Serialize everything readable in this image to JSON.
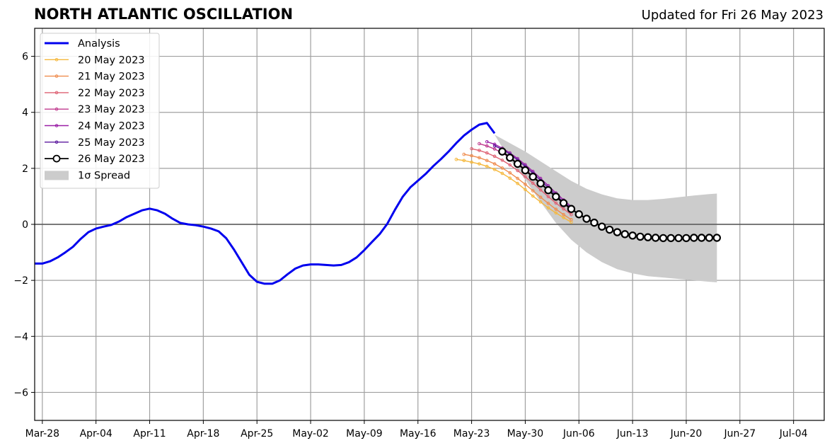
{
  "header": {
    "title": "NORTH ATLANTIC OSCILLATION",
    "subtitle": "Updated for Fri 26 May 2023"
  },
  "chart_data": {
    "type": "line",
    "title": "NORTH ATLANTIC OSCILLATION",
    "subtitle": "Updated for Fri 26 May 2023",
    "xlabel": "",
    "ylabel": "",
    "x_axis": {
      "type": "date",
      "range": [
        "2023-03-27",
        "2023-07-08"
      ],
      "ticks": [
        "2023-03-28",
        "2023-04-04",
        "2023-04-11",
        "2023-04-18",
        "2023-04-25",
        "2023-05-02",
        "2023-05-09",
        "2023-05-16",
        "2023-05-23",
        "2023-05-30",
        "2023-06-06",
        "2023-06-13",
        "2023-06-20",
        "2023-06-27",
        "2023-07-04"
      ],
      "tick_labels": [
        "Mar-28",
        "Apr-04",
        "Apr-11",
        "Apr-18",
        "Apr-25",
        "May-02",
        "May-09",
        "May-16",
        "May-23",
        "May-30",
        "Jun-06",
        "Jun-13",
        "Jun-20",
        "Jun-27",
        "Jul-04"
      ]
    },
    "y_axis": {
      "range": [
        -7,
        7
      ],
      "ticks": [
        -6,
        -4,
        -2,
        0,
        2,
        4,
        6
      ],
      "tick_labels": [
        "−6",
        "−4",
        "−2",
        "0",
        "2",
        "4",
        "6"
      ]
    },
    "grid": true,
    "zero_line": true,
    "legend": {
      "placement": "top-left"
    },
    "analysis": {
      "name": "Analysis",
      "color": "#0000ee",
      "dates": [
        "2023-03-27",
        "2023-03-28",
        "2023-03-29",
        "2023-03-30",
        "2023-03-31",
        "2023-04-01",
        "2023-04-02",
        "2023-04-03",
        "2023-04-04",
        "2023-04-05",
        "2023-04-06",
        "2023-04-07",
        "2023-04-08",
        "2023-04-09",
        "2023-04-10",
        "2023-04-11",
        "2023-04-12",
        "2023-04-13",
        "2023-04-14",
        "2023-04-15",
        "2023-04-16",
        "2023-04-17",
        "2023-04-18",
        "2023-04-19",
        "2023-04-20",
        "2023-04-21",
        "2023-04-22",
        "2023-04-23",
        "2023-04-24",
        "2023-04-25",
        "2023-04-26",
        "2023-04-27",
        "2023-04-28",
        "2023-04-29",
        "2023-04-30",
        "2023-05-01",
        "2023-05-02",
        "2023-05-03",
        "2023-05-04",
        "2023-05-05",
        "2023-05-06",
        "2023-05-07",
        "2023-05-08",
        "2023-05-09",
        "2023-05-10",
        "2023-05-11",
        "2023-05-12",
        "2023-05-13",
        "2023-05-14",
        "2023-05-15",
        "2023-05-16",
        "2023-05-17",
        "2023-05-18",
        "2023-05-19",
        "2023-05-20",
        "2023-05-21",
        "2023-05-22",
        "2023-05-23",
        "2023-05-24",
        "2023-05-25",
        "2023-05-26"
      ],
      "values": [
        -1.4,
        -1.4,
        -1.32,
        -1.18,
        -1.0,
        -0.8,
        -0.52,
        -0.28,
        -0.15,
        -0.08,
        -0.02,
        0.1,
        0.26,
        0.38,
        0.5,
        0.56,
        0.5,
        0.38,
        0.2,
        0.05,
        0.0,
        -0.03,
        -0.08,
        -0.15,
        -0.25,
        -0.5,
        -0.9,
        -1.35,
        -1.8,
        -2.05,
        -2.12,
        -2.12,
        -2.0,
        -1.78,
        -1.58,
        -1.47,
        -1.43,
        -1.43,
        -1.45,
        -1.47,
        -1.45,
        -1.35,
        -1.18,
        -0.92,
        -0.63,
        -0.35,
        0.02,
        0.52,
        0.98,
        1.32,
        1.56,
        1.8,
        2.08,
        2.33,
        2.6,
        2.9,
        3.17,
        3.38,
        3.56,
        3.62,
        3.25
      ]
    },
    "forecasts": [
      {
        "name": "20 May 2023",
        "color": "#f5b83d",
        "start": "2023-05-21",
        "values": [
          2.32,
          2.28,
          2.22,
          2.16,
          2.07,
          1.96,
          1.82,
          1.65,
          1.46,
          1.24,
          1.01,
          0.8,
          0.59,
          0.41,
          0.24,
          0.08
        ]
      },
      {
        "name": "21 May 2023",
        "color": "#ef8c4e",
        "start": "2023-05-22",
        "values": [
          2.5,
          2.45,
          2.38,
          2.28,
          2.16,
          2.01,
          1.84,
          1.64,
          1.43,
          1.2,
          0.97,
          0.75,
          0.54,
          0.35,
          0.17
        ]
      },
      {
        "name": "22 May 2023",
        "color": "#de6072",
        "start": "2023-05-23",
        "values": [
          2.7,
          2.64,
          2.55,
          2.43,
          2.29,
          2.12,
          1.92,
          1.7,
          1.47,
          1.23,
          0.99,
          0.76,
          0.55,
          0.35
        ]
      },
      {
        "name": "23 May 2023",
        "color": "#c03a8e",
        "start": "2023-05-24",
        "values": [
          2.88,
          2.8,
          2.69,
          2.55,
          2.38,
          2.18,
          1.96,
          1.72,
          1.47,
          1.22,
          0.97,
          0.74,
          0.52
        ]
      },
      {
        "name": "24 May 2023",
        "color": "#9a1fa6",
        "start": "2023-05-25",
        "values": [
          2.95,
          2.86,
          2.72,
          2.55,
          2.35,
          2.13,
          1.89,
          1.64,
          1.38,
          1.12,
          0.87,
          0.63
        ]
      },
      {
        "name": "25 May 2023",
        "color": "#5c1a9e",
        "start": "2023-05-26",
        "values": [
          2.8,
          2.68,
          2.51,
          2.3,
          2.07,
          1.83,
          1.57,
          1.31,
          1.05,
          0.8,
          0.58
        ]
      }
    ],
    "latest_forecast": {
      "name": "26 May 2023",
      "color": "#000000",
      "start": "2023-05-27",
      "values": [
        2.6,
        2.38,
        2.16,
        1.93,
        1.7,
        1.46,
        1.22,
        0.99,
        0.76,
        0.55,
        0.36,
        0.2,
        0.06,
        -0.08,
        -0.19,
        -0.28,
        -0.35,
        -0.4,
        -0.44,
        -0.46,
        -0.48,
        -0.49,
        -0.49,
        -0.49,
        -0.49,
        -0.48,
        -0.48,
        -0.48,
        -0.48
      ]
    },
    "spread": {
      "name": "1σ Spread",
      "color": "#cccccc",
      "dates": [
        "2023-05-26",
        "2023-05-28",
        "2023-05-30",
        "2023-06-01",
        "2023-06-03",
        "2023-06-05",
        "2023-06-07",
        "2023-06-09",
        "2023-06-11",
        "2023-06-13",
        "2023-06-15",
        "2023-06-17",
        "2023-06-19",
        "2023-06-21",
        "2023-06-23",
        "2023-06-24"
      ],
      "upper": [
        3.2,
        2.9,
        2.6,
        2.25,
        1.9,
        1.55,
        1.27,
        1.07,
        0.93,
        0.87,
        0.87,
        0.91,
        0.97,
        1.03,
        1.08,
        1.1
      ],
      "lower": [
        3.2,
        2.3,
        1.6,
        0.8,
        0.05,
        -0.55,
        -1.0,
        -1.35,
        -1.6,
        -1.75,
        -1.85,
        -1.9,
        -1.95,
        -2.0,
        -2.05,
        -2.07
      ]
    }
  }
}
